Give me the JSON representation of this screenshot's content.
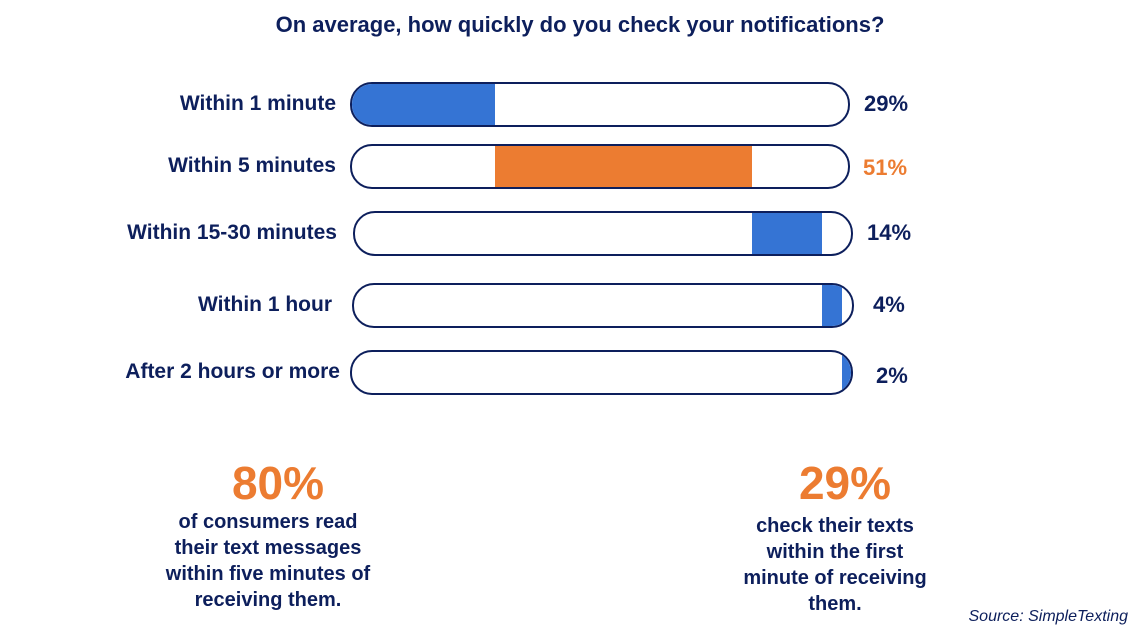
{
  "colors": {
    "navy": "#0d1f5c",
    "blue": "#3574d4",
    "orange": "#ec7c31"
  },
  "chart_data": {
    "type": "bar",
    "title": "On average, how quickly do you check your notifications?",
    "categories": [
      "Within 1 minute",
      "Within 5 minutes",
      "Within 15-30 minutes",
      "Within 1 hour",
      "After 2 hours or more"
    ],
    "values": [
      29,
      51,
      14,
      4,
      2
    ],
    "value_labels": [
      "29%",
      "51%",
      "14%",
      "4%",
      "2%"
    ],
    "highlight_index": 1,
    "highlight_color": "#ec7c31",
    "bar_color": "#3574d4",
    "layout": "stacked-cumulative",
    "xlim": [
      0,
      100
    ]
  },
  "stats": [
    {
      "value": "80%",
      "lines": [
        "of consumers read",
        "their text messages",
        "within five minutes of",
        "receiving them."
      ]
    },
    {
      "value": "29%",
      "lines": [
        "check their texts",
        "within the first",
        "minute of receiving",
        "them."
      ]
    }
  ],
  "source": "Source: SimpleTexting"
}
